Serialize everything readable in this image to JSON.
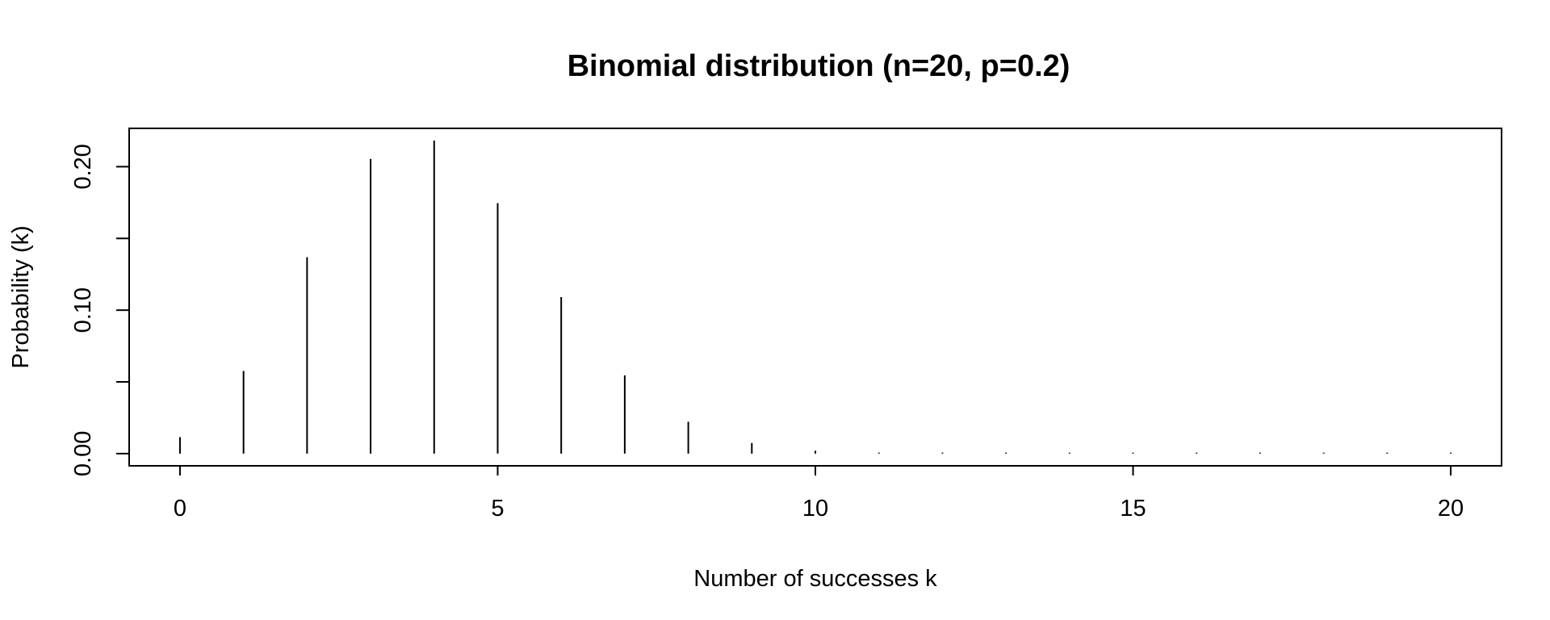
{
  "chart_data": {
    "type": "bar",
    "title": "Binomial distribution (n=20, p=0.2)",
    "xlabel": "Number of successes k",
    "ylabel": "Probability (k)",
    "x": [
      0,
      1,
      2,
      3,
      4,
      5,
      6,
      7,
      8,
      9,
      10,
      11,
      12,
      13,
      14,
      15,
      16,
      17,
      18,
      19,
      20
    ],
    "values": [
      0.0115,
      0.0576,
      0.1369,
      0.2054,
      0.2182,
      0.1746,
      0.1091,
      0.0545,
      0.0222,
      0.0074,
      0.002,
      0.0005,
      0.0001,
      0.0,
      0.0,
      0.0,
      0.0,
      0.0,
      0.0,
      0.0,
      0.0
    ],
    "xlim": [
      -0.8,
      20.8
    ],
    "ylim": [
      -0.0085,
      0.2267
    ],
    "x_ticks": [
      0,
      5,
      10,
      15,
      20
    ],
    "x_tick_labels": [
      "0",
      "5",
      "10",
      "15",
      "20"
    ],
    "y_ticks": [
      0.0,
      0.05,
      0.1,
      0.15,
      0.2
    ],
    "y_tick_labels": [
      "0.00",
      "",
      "0.10",
      "",
      "0.20"
    ],
    "grid": false
  }
}
